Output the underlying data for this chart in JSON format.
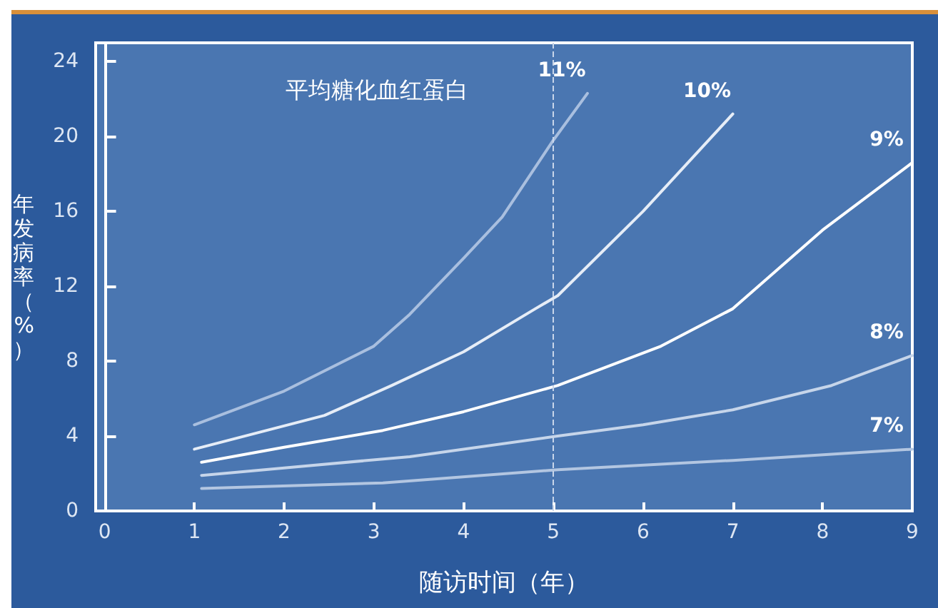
{
  "chart_data": {
    "type": "line",
    "title": "平均糖化血红蛋白",
    "xlabel": "随访时间（年）",
    "ylabel": "年发病率（%）",
    "xlim": [
      -0.1,
      9
    ],
    "xticks": [
      0,
      1,
      2,
      3,
      4,
      5,
      6,
      7,
      8,
      9
    ],
    "ylim": [
      0,
      25
    ],
    "yticks": [
      0,
      4,
      8,
      12,
      16,
      20,
      24
    ],
    "grid": false,
    "legend": false,
    "marker": "none",
    "line_style": "solid",
    "ref_lines": [
      {
        "axis": "x",
        "value": 5,
        "line_style": "dashed",
        "color": "#c9d6ea"
      }
    ],
    "series": [
      {
        "name": "11%",
        "color": "#a9bfdf",
        "x": [
          1,
          2,
          3,
          3.4,
          4,
          4.43,
          5,
          5.38
        ],
        "values": [
          4.6,
          6.4,
          8.8,
          10.5,
          13.5,
          15.7,
          19.8,
          22.3
        ]
      },
      {
        "name": "10%",
        "color": "#e6edf7",
        "x": [
          1,
          2.45,
          3.2,
          4,
          4.8,
          5.05,
          6,
          7
        ],
        "values": [
          3.3,
          5.1,
          6.7,
          8.5,
          10.8,
          11.5,
          16,
          21.2
        ]
      },
      {
        "name": "9%",
        "color": "#ffffff",
        "x": [
          1.08,
          2,
          3.1,
          4,
          5.05,
          6.2,
          7,
          8,
          9
        ],
        "values": [
          2.6,
          3.4,
          4.3,
          5.3,
          6.7,
          8.8,
          10.8,
          15,
          18.6
        ]
      },
      {
        "name": "8%",
        "color": "#c6d5ea",
        "x": [
          1.08,
          2,
          3.4,
          5.05,
          6,
          7,
          8.1,
          9
        ],
        "values": [
          1.9,
          2.3,
          2.9,
          4,
          4.6,
          5.4,
          6.7,
          8.3
        ]
      },
      {
        "name": "7%",
        "color": "#b3c6e1",
        "x": [
          1.08,
          3.1,
          5.05,
          7,
          9
        ],
        "values": [
          1.2,
          1.5,
          2.2,
          2.7,
          3.3
        ]
      }
    ]
  }
}
